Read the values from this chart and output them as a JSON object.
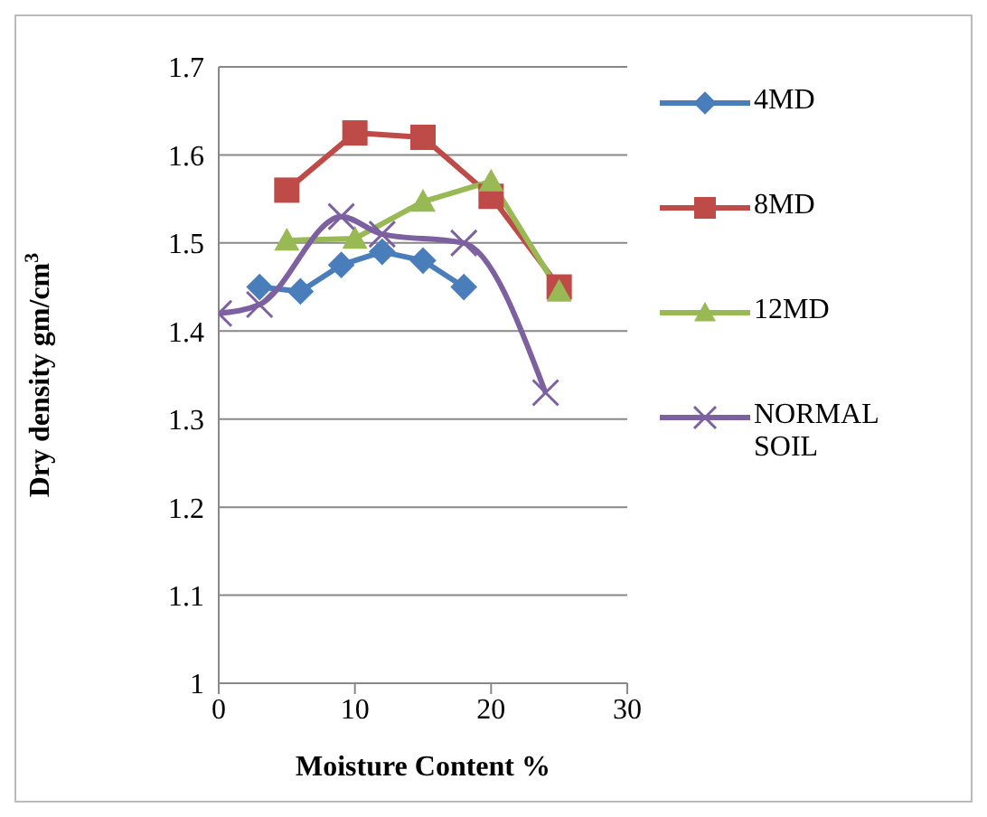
{
  "chart_data": {
    "type": "line",
    "xlabel": "Moisture Content   %",
    "ylabel": "Dry density gm/cm$^{3}$",
    "xlim": [
      0,
      30
    ],
    "xticks": [
      0,
      10,
      20,
      30
    ],
    "ylim": [
      1,
      1.7
    ],
    "yticks": [
      1,
      1.1,
      1.2,
      1.3,
      1.4,
      1.5,
      1.6,
      1.7
    ],
    "grid": "y",
    "legend": "right",
    "series": [
      {
        "name": "4MD",
        "color": "#4a7ebb",
        "marker": "diamond",
        "x": [
          3,
          6,
          9,
          12,
          15,
          18
        ],
        "values": [
          1.45,
          1.445,
          1.475,
          1.49,
          1.48,
          1.45
        ]
      },
      {
        "name": "8MD",
        "color": "#be4b48",
        "marker": "square",
        "x": [
          5,
          10,
          15,
          20,
          25
        ],
        "values": [
          1.56,
          1.625,
          1.62,
          1.553,
          1.45
        ]
      },
      {
        "name": "12MD",
        "color": "#98b954",
        "marker": "triangle",
        "x": [
          5,
          10,
          15,
          20,
          25
        ],
        "values": [
          1.503,
          1.505,
          1.547,
          1.57,
          1.445
        ]
      },
      {
        "name": "NORMAL SOIL",
        "color": "#7d60a0",
        "marker": "cross",
        "x": [
          0,
          3,
          9,
          12,
          18,
          24
        ],
        "values": [
          1.42,
          1.43,
          1.53,
          1.51,
          1.5,
          1.33
        ]
      }
    ]
  }
}
